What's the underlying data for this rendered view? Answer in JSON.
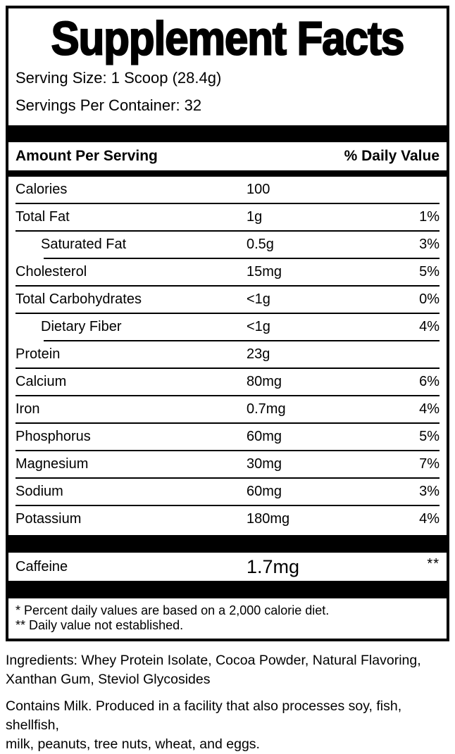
{
  "colors": {
    "ink": "#000000",
    "paper": "#ffffff"
  },
  "label": {
    "title": "Supplement Facts",
    "serving_size": "Serving Size: 1 Scoop (28.4g)",
    "servings_per_container": "Servings Per Container: 32",
    "header": {
      "amount_col": "Amount Per Serving",
      "dv_col": "% Daily Value"
    },
    "rows": [
      {
        "name": "Calories",
        "amount": "100",
        "dv": "",
        "indent": false,
        "sep_above": "none"
      },
      {
        "name": "Total Fat",
        "amount": "1g",
        "dv": "1%",
        "indent": false,
        "sep_above": "full"
      },
      {
        "name": "Saturated Fat",
        "amount": "0.5g",
        "dv": "3%",
        "indent": true,
        "sep_above": "full"
      },
      {
        "name": "Cholesterol",
        "amount": "15mg",
        "dv": "5%",
        "indent": false,
        "sep_above": "indent"
      },
      {
        "name": "Total Carbohydrates",
        "amount": "<1g",
        "dv": "0%",
        "indent": false,
        "sep_above": "full"
      },
      {
        "name": "Dietary Fiber",
        "amount": "<1g",
        "dv": "4%",
        "indent": true,
        "sep_above": "full"
      },
      {
        "name": "Protein",
        "amount": "23g",
        "dv": "",
        "indent": false,
        "sep_above": "indent"
      },
      {
        "name": "Calcium",
        "amount": "80mg",
        "dv": "6%",
        "indent": false,
        "sep_above": "full"
      },
      {
        "name": "Iron",
        "amount": "0.7mg",
        "dv": "4%",
        "indent": false,
        "sep_above": "full"
      },
      {
        "name": "Phosphorus",
        "amount": "60mg",
        "dv": "5%",
        "indent": false,
        "sep_above": "full"
      },
      {
        "name": "Magnesium",
        "amount": "30mg",
        "dv": "7%",
        "indent": false,
        "sep_above": "full"
      },
      {
        "name": "Sodium",
        "amount": "60mg",
        "dv": "3%",
        "indent": false,
        "sep_above": "full"
      },
      {
        "name": "Potassium",
        "amount": "180mg",
        "dv": "4%",
        "indent": false,
        "sep_above": "full"
      }
    ],
    "caffeine_row": {
      "name": "Caffeine",
      "amount": "1.7mg",
      "dv": "**"
    },
    "footnotes": [
      "* Percent daily values are based on a 2,000 calorie diet.",
      "** Daily value not established."
    ]
  },
  "below": {
    "ingredients": "Ingredients: Whey Protein Isolate, Cocoa Powder, Natural Flavoring,\nXanthan Gum, Steviol Glycosides",
    "allergen": "Contains Milk. Produced in a facility that also processes soy, fish, shellfish,\nmilk, peanuts, tree nuts, wheat, and eggs."
  }
}
